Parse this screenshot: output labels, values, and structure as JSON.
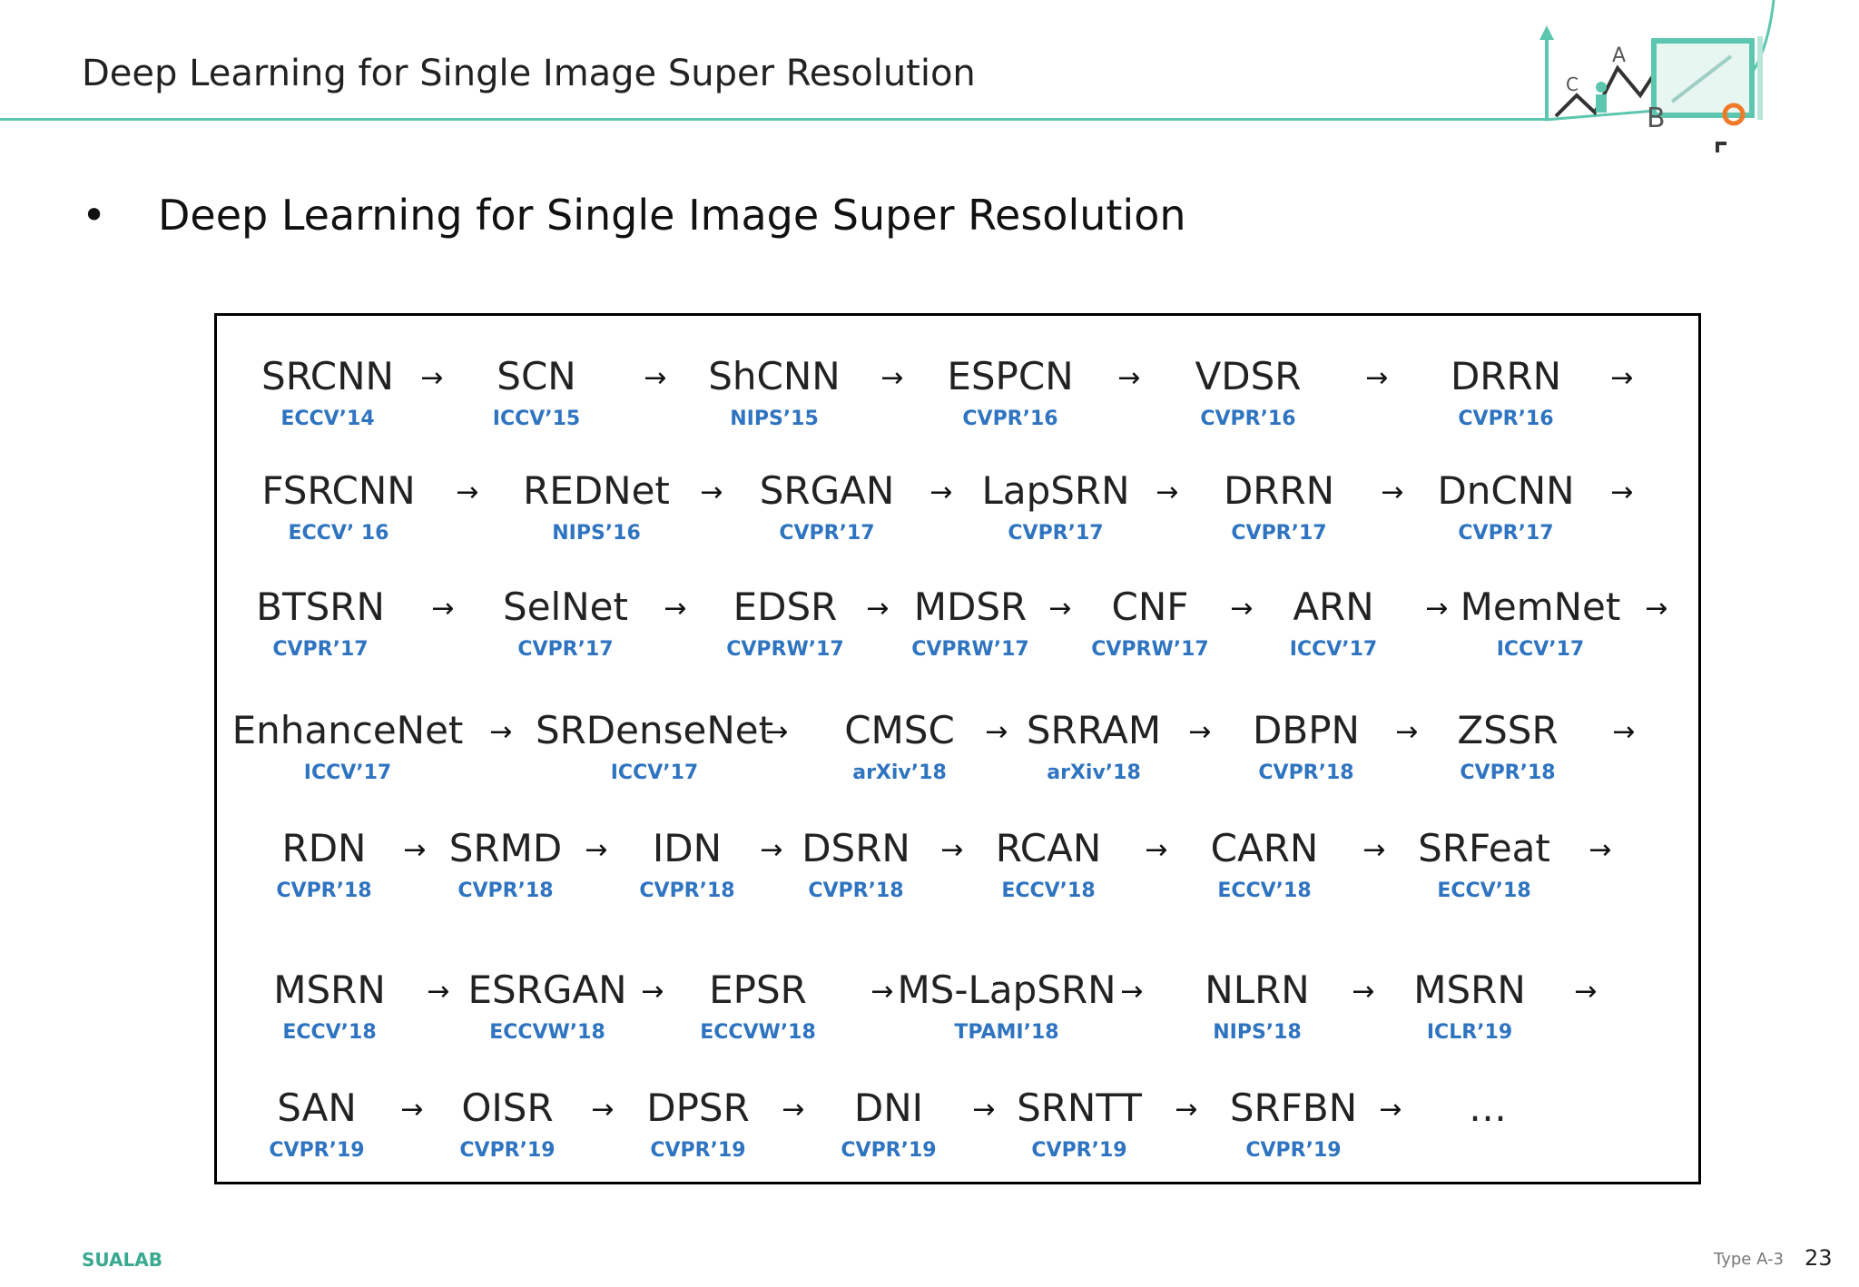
{
  "header": {
    "title": "Deep Learning for Single Image Super Resolution"
  },
  "logo": {
    "letters": [
      "C",
      "A",
      "B"
    ],
    "accent_color": "#5cc6ae",
    "marker_color": "#f07a2a"
  },
  "bullet": {
    "marker": "•",
    "text": "Deep Learning for Single Image Super Resolution"
  },
  "rows": [
    {
      "items": [
        {
          "name": "SRCNN",
          "venue": "ECCV’14"
        },
        {
          "name": "SCN",
          "venue": "ICCV’15"
        },
        {
          "name": "ShCNN",
          "venue": "NIPS’15"
        },
        {
          "name": "ESPCN",
          "venue": "CVPR’16"
        },
        {
          "name": "VDSR",
          "venue": "CVPR’16"
        },
        {
          "name": "DRRN",
          "venue": "CVPR’16"
        }
      ]
    },
    {
      "items": [
        {
          "name": "FSRCNN",
          "venue": "ECCV’ 16"
        },
        {
          "name": "REDNet",
          "venue": "NIPS’16"
        },
        {
          "name": "SRGAN",
          "venue": "CVPR’17"
        },
        {
          "name": "LapSRN",
          "venue": "CVPR’17"
        },
        {
          "name": "DRRN",
          "venue": "CVPR’17"
        },
        {
          "name": "DnCNN",
          "venue": "CVPR’17"
        }
      ]
    },
    {
      "items": [
        {
          "name": "BTSRN",
          "venue": "CVPR’17"
        },
        {
          "name": "SelNet",
          "venue": "CVPR’17"
        },
        {
          "name": "EDSR",
          "venue": "CVPRW’17"
        },
        {
          "name": "MDSR",
          "venue": "CVPRW’17"
        },
        {
          "name": "CNF",
          "venue": "CVPRW’17"
        },
        {
          "name": "ARN",
          "venue": "ICCV’17"
        },
        {
          "name": "MemNet",
          "venue": "ICCV’17"
        }
      ]
    },
    {
      "items": [
        {
          "name": "EnhanceNet",
          "venue": "ICCV’17"
        },
        {
          "name": "SRDenseNet",
          "venue": "ICCV’17"
        },
        {
          "name": "CMSC",
          "venue": "arXiv’18"
        },
        {
          "name": "SRRAM",
          "venue": "arXiv’18"
        },
        {
          "name": "DBPN",
          "venue": "CVPR’18"
        },
        {
          "name": "ZSSR",
          "venue": "CVPR’18"
        }
      ]
    },
    {
      "items": [
        {
          "name": "RDN",
          "venue": "CVPR’18"
        },
        {
          "name": "SRMD",
          "venue": "CVPR’18"
        },
        {
          "name": "IDN",
          "venue": "CVPR’18"
        },
        {
          "name": "DSRN",
          "venue": "CVPR’18"
        },
        {
          "name": "RCAN",
          "venue": "ECCV’18"
        },
        {
          "name": "CARN",
          "venue": "ECCV’18"
        },
        {
          "name": "SRFeat",
          "venue": "ECCV’18"
        }
      ]
    },
    {
      "items": [
        {
          "name": "MSRN",
          "venue": "ECCV’18"
        },
        {
          "name": "ESRGAN",
          "venue": "ECCVW’18"
        },
        {
          "name": "EPSR",
          "venue": "ECCVW’18"
        },
        {
          "name": "MS-LapSRN",
          "venue": "TPAMI’18"
        },
        {
          "name": "NLRN",
          "venue": "NIPS’18"
        },
        {
          "name": "MSRN",
          "venue": "ICLR’19"
        }
      ]
    },
    {
      "items": [
        {
          "name": "SAN",
          "venue": "CVPR’19"
        },
        {
          "name": "OISR",
          "venue": "CVPR’19"
        },
        {
          "name": "DPSR",
          "venue": "CVPR’19"
        },
        {
          "name": "DNI",
          "venue": "CVPR’19"
        },
        {
          "name": "SRNTT",
          "venue": "CVPR’19"
        },
        {
          "name": "SRFBN",
          "venue": "CVPR’19"
        },
        {
          "name": "…",
          "venue": ""
        }
      ]
    }
  ],
  "arrow_glyph": "→",
  "footer": {
    "brand": "SUALAB",
    "type_label": "Type A-3",
    "page_number": "23"
  }
}
